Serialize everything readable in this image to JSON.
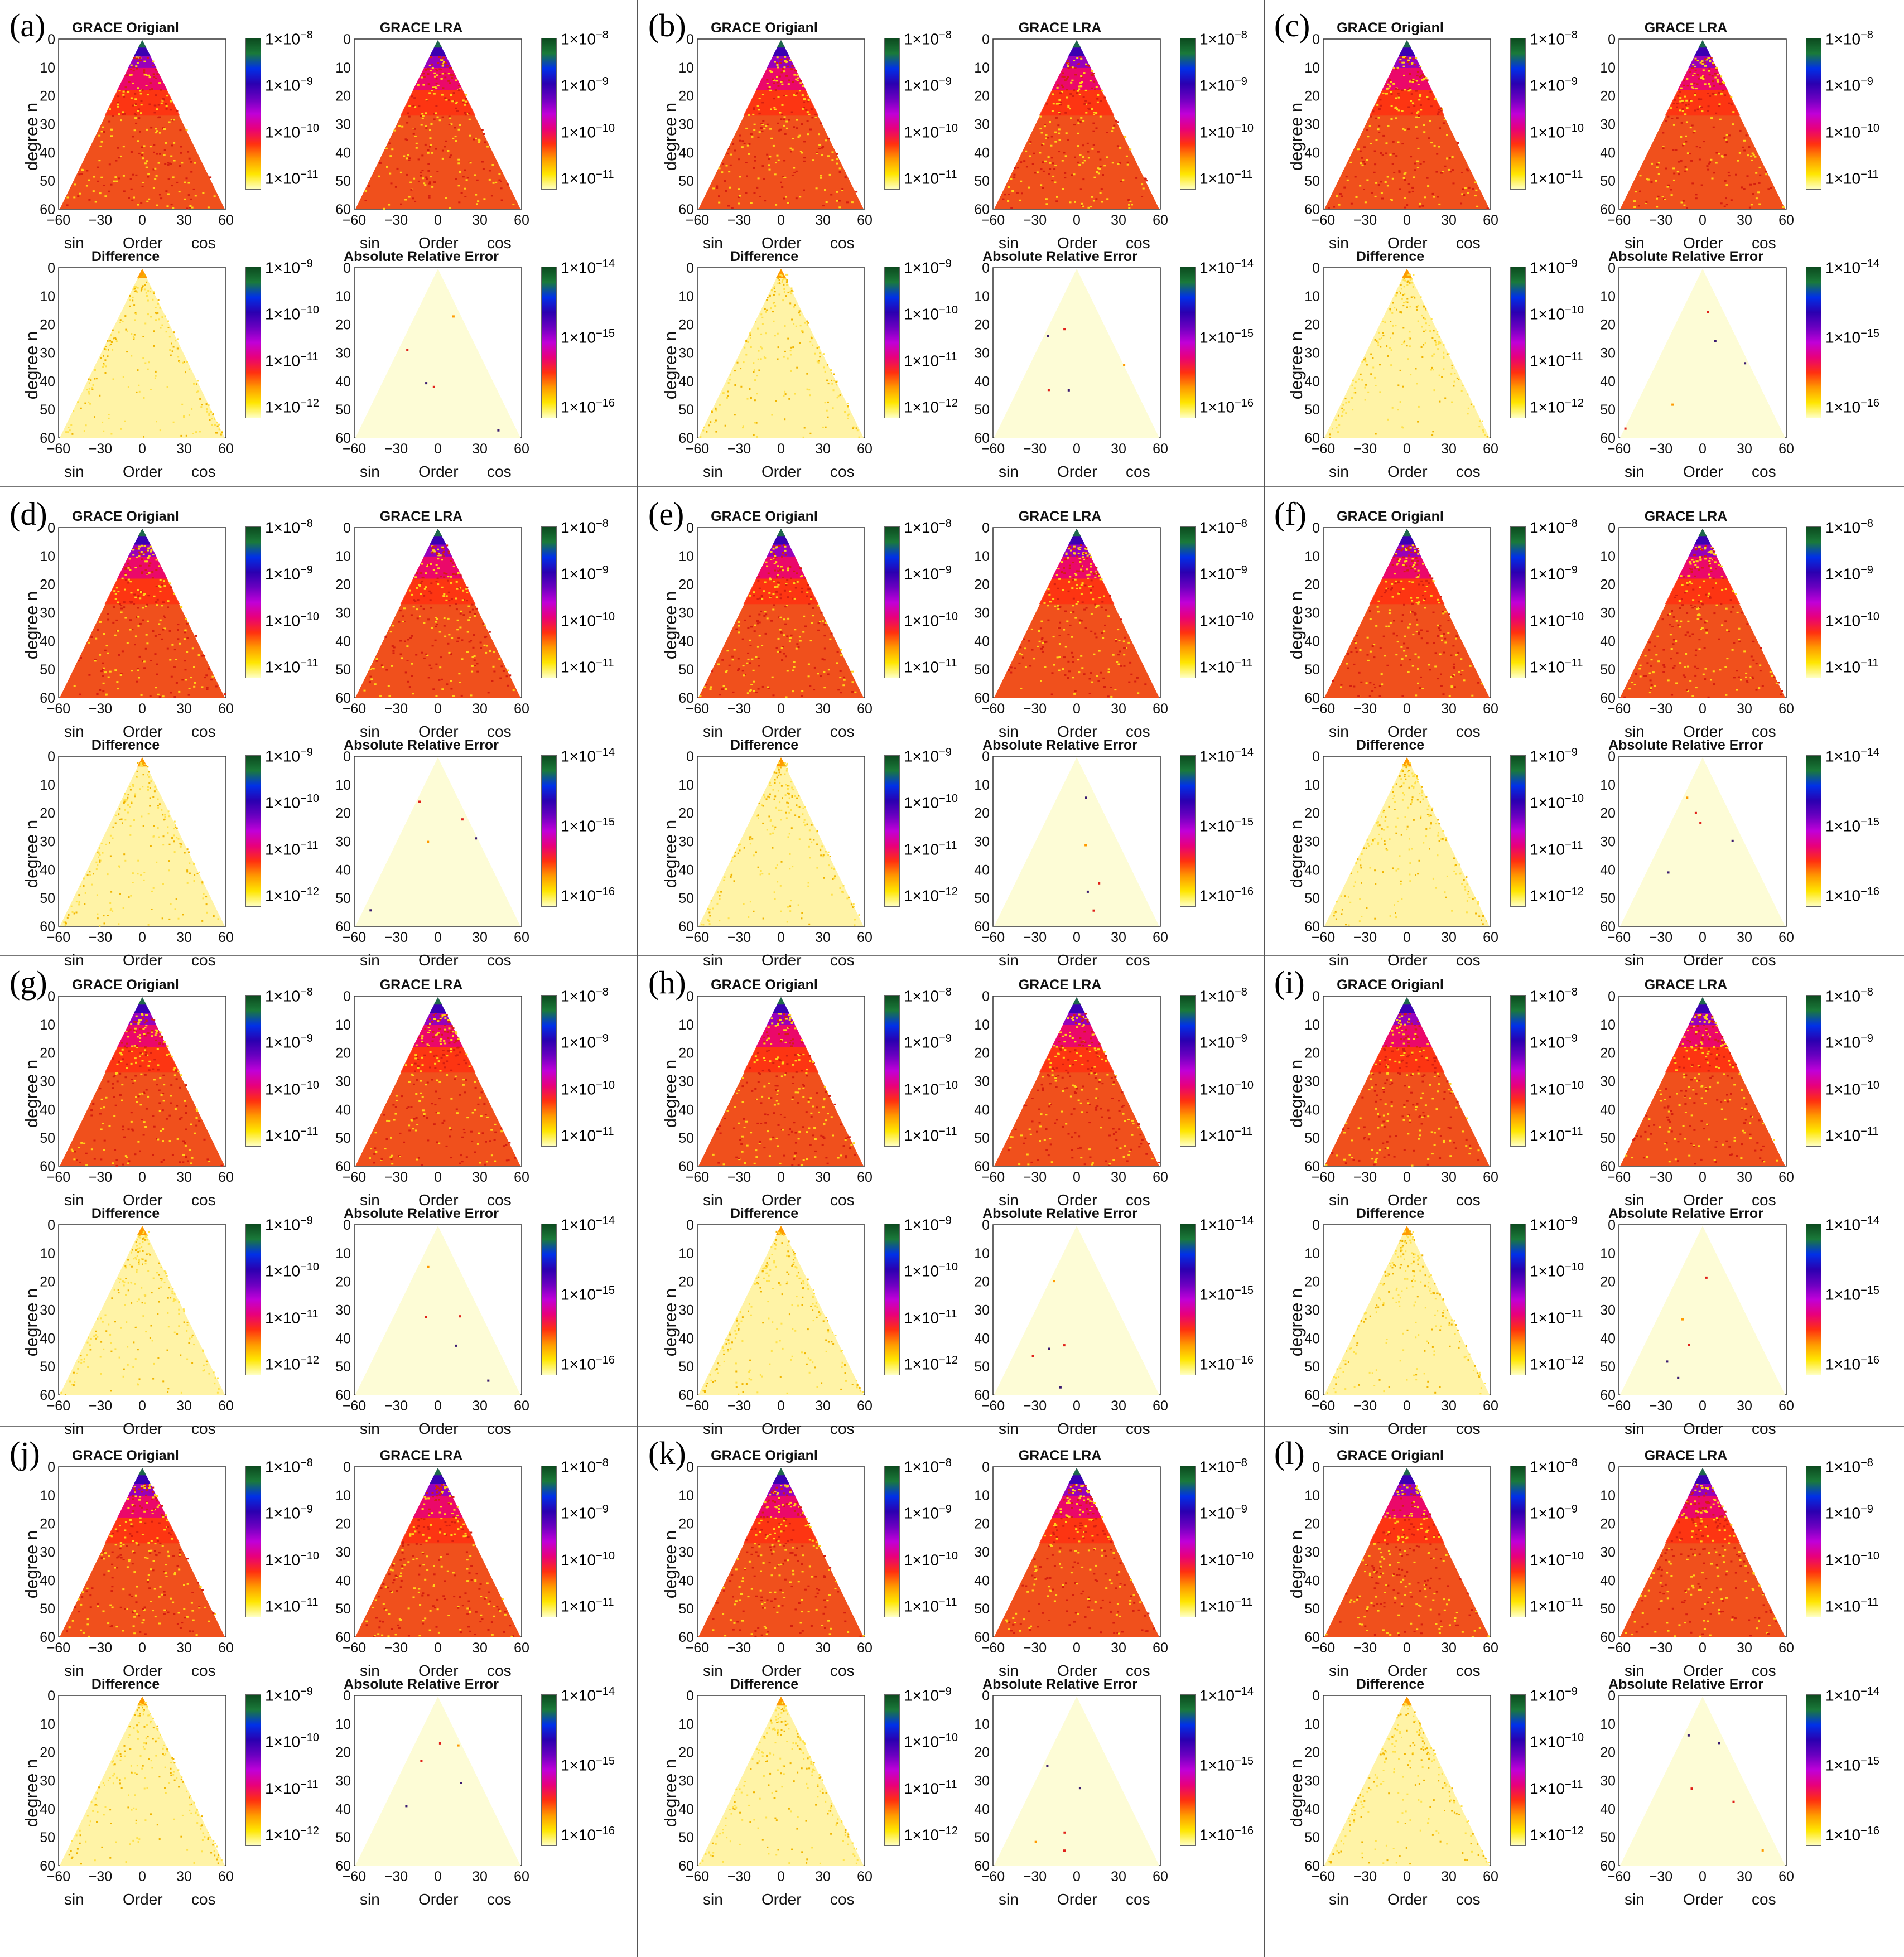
{
  "panel_letters": [
    "(a)",
    "(b)",
    "(c)",
    "(d)",
    "(e)",
    "(f)",
    "(g)",
    "(h)",
    "(i)",
    "(j)",
    "(k)",
    "(l)"
  ],
  "subplot_titles": [
    "GRACE Origianl",
    "GRACE LRA",
    "Difference",
    "Absolute Relative Error"
  ],
  "ylabel": "degree n",
  "x_words": {
    "left": "sin",
    "center": "Order",
    "right": "cos"
  },
  "x_ticks": [
    "−60",
    "−30",
    "0",
    "30",
    "60"
  ],
  "y_ticks": [
    "0",
    "10",
    "20",
    "30",
    "40",
    "50",
    "60"
  ],
  "colorbars": {
    "coefficients": {
      "base": "1×10",
      "exponents": [
        "−8",
        "−9",
        "−10",
        "−11"
      ]
    },
    "difference": {
      "base": "1×10",
      "exponents": [
        "−9",
        "−10",
        "−11",
        "−12"
      ]
    },
    "relative_error": {
      "base": "1×10",
      "exponents": [
        "−14",
        "−15",
        "−16"
      ]
    }
  },
  "colors": {
    "colormap": [
      "#ffffc4",
      "#ffe600",
      "#ff9a00",
      "#ff3010",
      "#e8007a",
      "#c000d8",
      "#6a00c0",
      "#2a00b0",
      "#0030e8",
      "#1a7a3a",
      "#0c4a1e"
    ],
    "coef_fill": "#f0501c",
    "diff_fill": "#fff3a6",
    "err_fill": "#fdfcd6"
  },
  "chart_data": {
    "type": "heatmap",
    "description_axes": {
      "x": "Order (sin / cos), -60..60",
      "y": "degree n, 0..60"
    },
    "xlim": [
      -60,
      60
    ],
    "ylim": [
      60,
      0
    ],
    "panels": 12,
    "subplots_per_panel": [
      "GRACE Origianl",
      "GRACE LRA",
      "Difference",
      "Absolute Relative Error"
    ]
  }
}
